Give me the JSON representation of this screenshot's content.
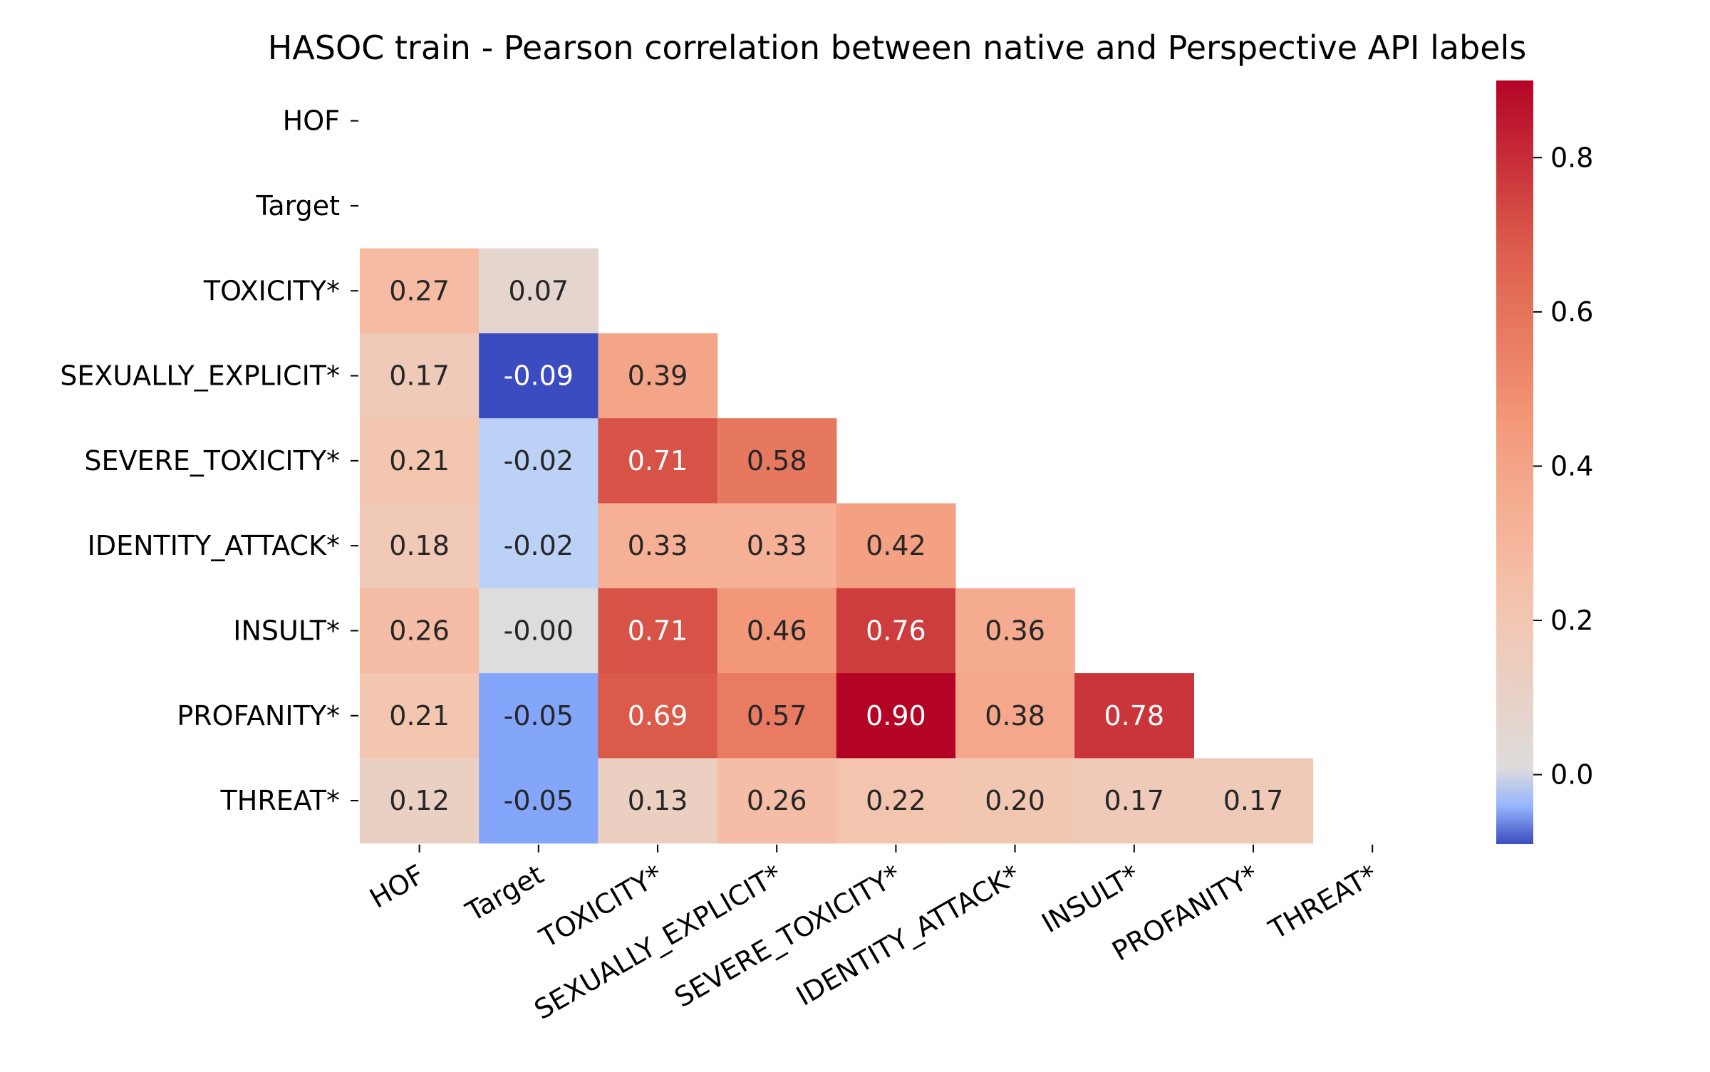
{
  "chart_data": {
    "type": "heatmap",
    "title": "HASOC train - Pearson correlation between native and Perspective API labels",
    "rows": [
      "HOF",
      "Target",
      "TOXICITY*",
      "SEXUALLY_EXPLICIT*",
      "SEVERE_TOXICITY*",
      "IDENTITY_ATTACK*",
      "INSULT*",
      "PROFANITY*",
      "THREAT*"
    ],
    "columns": [
      "HOF",
      "Target",
      "TOXICITY*",
      "SEXUALLY_EXPLICIT*",
      "SEVERE_TOXICITY*",
      "IDENTITY_ATTACK*",
      "INSULT*",
      "PROFANITY*",
      "THREAT*"
    ],
    "mask": "upper triangle including diagonal",
    "values": [
      [
        null,
        null,
        null,
        null,
        null,
        null,
        null,
        null,
        null
      ],
      [
        null,
        null,
        null,
        null,
        null,
        null,
        null,
        null,
        null
      ],
      [
        0.27,
        0.07,
        null,
        null,
        null,
        null,
        null,
        null,
        null
      ],
      [
        0.17,
        -0.09,
        0.39,
        null,
        null,
        null,
        null,
        null,
        null
      ],
      [
        0.21,
        -0.02,
        0.71,
        0.58,
        null,
        null,
        null,
        null,
        null
      ],
      [
        0.18,
        -0.02,
        0.33,
        0.33,
        0.42,
        null,
        null,
        null,
        null
      ],
      [
        0.26,
        -0.0,
        0.71,
        0.46,
        0.76,
        0.36,
        null,
        null,
        null
      ],
      [
        0.21,
        -0.05,
        0.69,
        0.57,
        0.9,
        0.38,
        0.78,
        null,
        null
      ],
      [
        0.12,
        -0.05,
        0.13,
        0.26,
        0.22,
        0.2,
        0.17,
        0.17,
        null
      ]
    ],
    "cell_labels": [
      [
        "",
        "",
        "",
        "",
        "",
        "",
        "",
        "",
        ""
      ],
      [
        "",
        "",
        "",
        "",
        "",
        "",
        "",
        "",
        ""
      ],
      [
        "0.27",
        "0.07",
        "",
        "",
        "",
        "",
        "",
        "",
        ""
      ],
      [
        "0.17",
        "-0.09",
        "0.39",
        "",
        "",
        "",
        "",
        "",
        ""
      ],
      [
        "0.21",
        "-0.02",
        "0.71",
        "0.58",
        "",
        "",
        "",
        "",
        ""
      ],
      [
        "0.18",
        "-0.02",
        "0.33",
        "0.33",
        "0.42",
        "",
        "",
        "",
        ""
      ],
      [
        "0.26",
        "-0.00",
        "0.71",
        "0.46",
        "0.76",
        "0.36",
        "",
        "",
        ""
      ],
      [
        "0.21",
        "-0.05",
        "0.69",
        "0.57",
        "0.90",
        "0.38",
        "0.78",
        "",
        ""
      ],
      [
        "0.12",
        "-0.05",
        "0.13",
        "0.26",
        "0.22",
        "0.20",
        "0.17",
        "0.17",
        ""
      ]
    ],
    "colormap": "coolwarm",
    "colorbar": {
      "range": [
        -0.09,
        0.9
      ],
      "ticks": [
        0.0,
        0.2,
        0.4,
        0.6,
        0.8
      ],
      "tick_labels": [
        "0.0",
        "0.2",
        "0.4",
        "0.6",
        "0.8"
      ],
      "orientation": "vertical",
      "position": "right"
    },
    "xtick_rotation_deg": 30,
    "grid": false
  }
}
